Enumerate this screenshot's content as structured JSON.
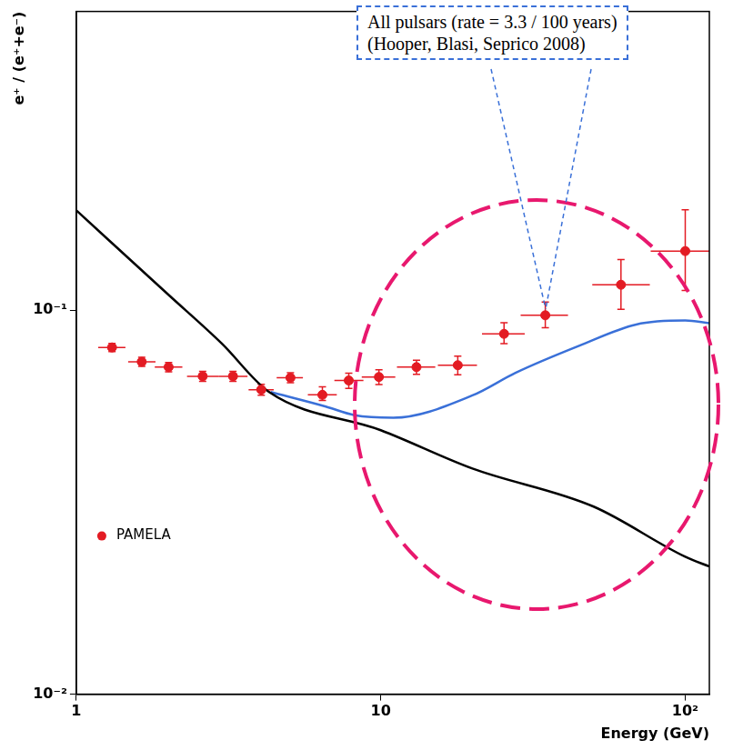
{
  "chart_data": {
    "type": "scatter",
    "x_label": "Energy (GeV)",
    "y_label": "e⁺ / (e⁺+e⁻)",
    "annotation": [
      "All pulsars (rate = 3.3 / 100 years)",
      "(Hooper, Blasi, Seprico 2008)"
    ],
    "log": true,
    "grid": false,
    "legend": "lower left",
    "xlim": [
      1,
      120
    ],
    "xticks": [
      1,
      10,
      {
        "value": 100,
        "label": "10²"
      }
    ],
    "ylim": [
      0.01,
      0.6
    ],
    "yticks": [
      {
        "value": 0.01,
        "label": "10⁻²"
      },
      {
        "value": 0.1,
        "label": "10⁻¹"
      }
    ],
    "series": [
      {
        "name": "PAMELA",
        "type": "scatter",
        "color": "#e31b23",
        "marker": "circle",
        "x": [
          1.31,
          1.64,
          2.01,
          2.6,
          3.27,
          4.05,
          5.05,
          6.43,
          7.85,
          9.86,
          13.1,
          17.9,
          25.4,
          34.7,
          61.5,
          100
        ],
        "values": [
          0.08,
          0.0734,
          0.0711,
          0.0673,
          0.0673,
          0.0621,
          0.0667,
          0.0602,
          0.0656,
          0.067,
          0.0711,
          0.0719,
          0.0868,
          0.097,
          0.1165,
          0.1426
        ],
        "xerr": [
          [
            0.13,
            0.14
          ],
          [
            0.16,
            0.18
          ],
          [
            0.2,
            0.22
          ],
          [
            0.29,
            0.33
          ],
          [
            0.34,
            0.38
          ],
          [
            0.37,
            0.4
          ],
          [
            0.5,
            0.5
          ],
          [
            0.67,
            0.74
          ],
          [
            0.81,
            0.92
          ],
          [
            1.2,
            1.3
          ],
          [
            1.8,
            2.0
          ],
          [
            2.5,
            2.8
          ],
          [
            3.9,
            4.3
          ],
          [
            5.9,
            6.5
          ],
          [
            12,
            15
          ],
          [
            23,
            29
          ]
        ],
        "yerr": [
          [
            0.002,
            0.002
          ],
          [
            0.002,
            0.002
          ],
          [
            0.002,
            0.002
          ],
          [
            0.002,
            0.002
          ],
          [
            0.002,
            0.002
          ],
          [
            0.002,
            0.002
          ],
          [
            0.002,
            0.002
          ],
          [
            0.002,
            0.003
          ],
          [
            0.003,
            0.003
          ],
          [
            0.003,
            0.003
          ],
          [
            0.003,
            0.003
          ],
          [
            0.004,
            0.004
          ],
          [
            0.005,
            0.006
          ],
          [
            0.007,
            0.008
          ],
          [
            0.016,
            0.019
          ],
          [
            0.03,
            0.04
          ]
        ]
      },
      {
        "type": "line",
        "color": "#000000",
        "line_style": "solid",
        "x": [
          1,
          2,
          3,
          4.3,
          10,
          20,
          50,
          100,
          120
        ],
        "values": [
          0.182,
          0.11,
          0.082,
          0.0612,
          0.0487,
          0.0387,
          0.0308,
          0.0228,
          0.0215
        ]
      },
      {
        "type": "line",
        "color": "#3a70d8",
        "line_style": "solid",
        "x": [
          4.35,
          6.6,
          8.2,
          11,
          20,
          27.7,
          44.8,
          69,
          100,
          120
        ],
        "values": [
          0.0612,
          0.0561,
          0.0533,
          0.0525,
          0.06,
          0.0687,
          0.0808,
          0.0918,
          0.094,
          0.0925
        ]
      }
    ]
  }
}
